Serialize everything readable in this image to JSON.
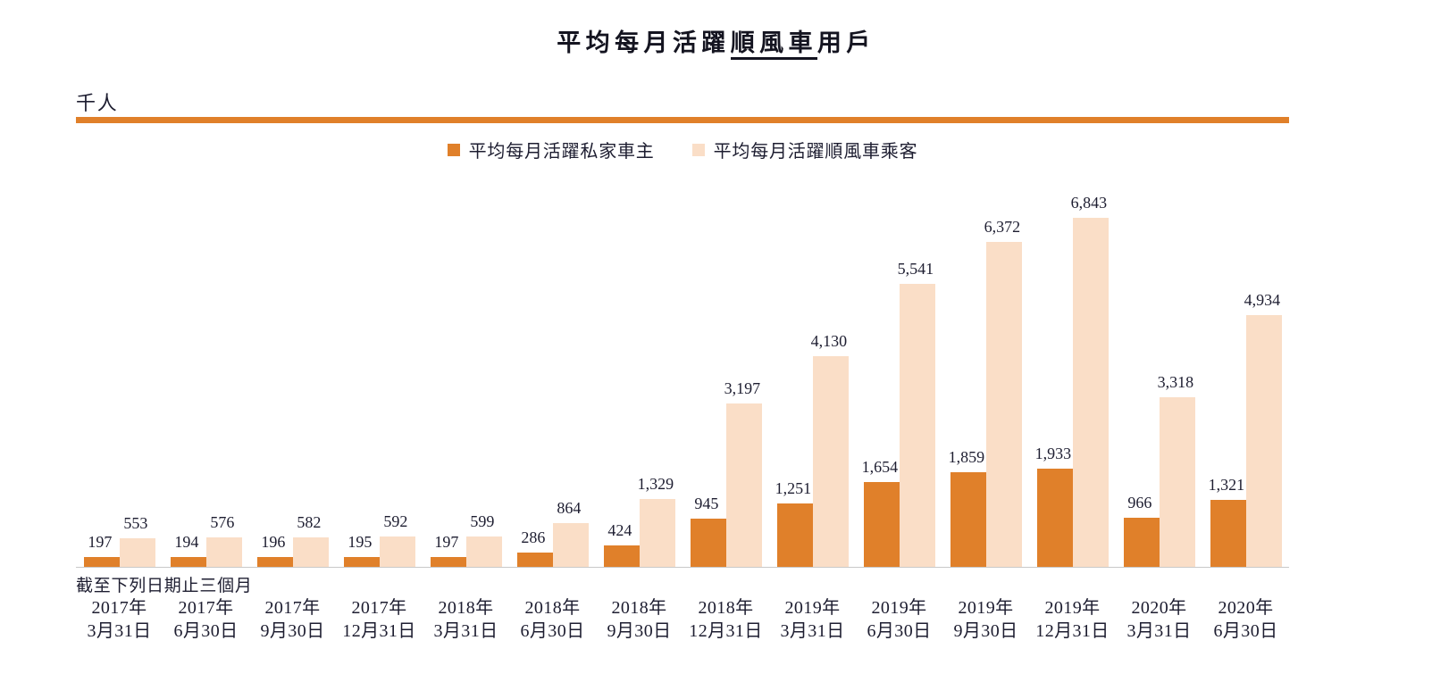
{
  "title": {
    "prefix": "平均每月活躍",
    "underlined": "順風車",
    "suffix": "用戶",
    "full": "平均每月活躍順風車用戶"
  },
  "unit_label": "千人",
  "legend": {
    "items": [
      {
        "label": "平均每月活躍私家車主",
        "color": "#E0802A"
      },
      {
        "label": "平均每月活躍順風車乘客",
        "color": "#FADEC7"
      }
    ]
  },
  "axis_note": "截至下列日期止三個月",
  "colors": {
    "accent": "#E0802A",
    "light": "#FADEC7",
    "rule": "#E0802A",
    "baseline": "#C9C9C9",
    "text": "#1D1D30"
  },
  "chart_data": {
    "type": "bar",
    "title": "平均每月活躍順風車用戶",
    "xlabel": "截至下列日期止三個月",
    "ylabel": "千人",
    "ylim": [
      0,
      7000
    ],
    "grid": false,
    "legend_position": "top",
    "categories": [
      "2017年3月31日",
      "2017年6月30日",
      "2017年9月30日",
      "2017年12月31日",
      "2018年3月31日",
      "2018年6月30日",
      "2018年9月30日",
      "2018年12月31日",
      "2019年3月31日",
      "2019年6月30日",
      "2019年9月30日",
      "2019年12月31日",
      "2020年3月31日",
      "2020年6月30日"
    ],
    "categories_two_line": [
      [
        "2017年",
        "3月31日"
      ],
      [
        "2017年",
        "6月30日"
      ],
      [
        "2017年",
        "9月30日"
      ],
      [
        "2017年",
        "12月31日"
      ],
      [
        "2018年",
        "3月31日"
      ],
      [
        "2018年",
        "6月30日"
      ],
      [
        "2018年",
        "9月30日"
      ],
      [
        "2018年",
        "12月31日"
      ],
      [
        "2019年",
        "3月31日"
      ],
      [
        "2019年",
        "6月30日"
      ],
      [
        "2019年",
        "9月30日"
      ],
      [
        "2019年",
        "12月31日"
      ],
      [
        "2020年",
        "3月31日"
      ],
      [
        "2020年",
        "6月30日"
      ]
    ],
    "series": [
      {
        "name": "平均每月活躍私家車主",
        "color": "#E0802A",
        "values": [
          197,
          194,
          196,
          195,
          197,
          286,
          424,
          945,
          1251,
          1654,
          1859,
          1933,
          966,
          1321
        ]
      },
      {
        "name": "平均每月活躍順風車乘客",
        "color": "#FADEC7",
        "values": [
          553,
          576,
          582,
          592,
          599,
          864,
          1329,
          3197,
          4130,
          5541,
          6372,
          6843,
          3318,
          4934
        ]
      }
    ]
  }
}
